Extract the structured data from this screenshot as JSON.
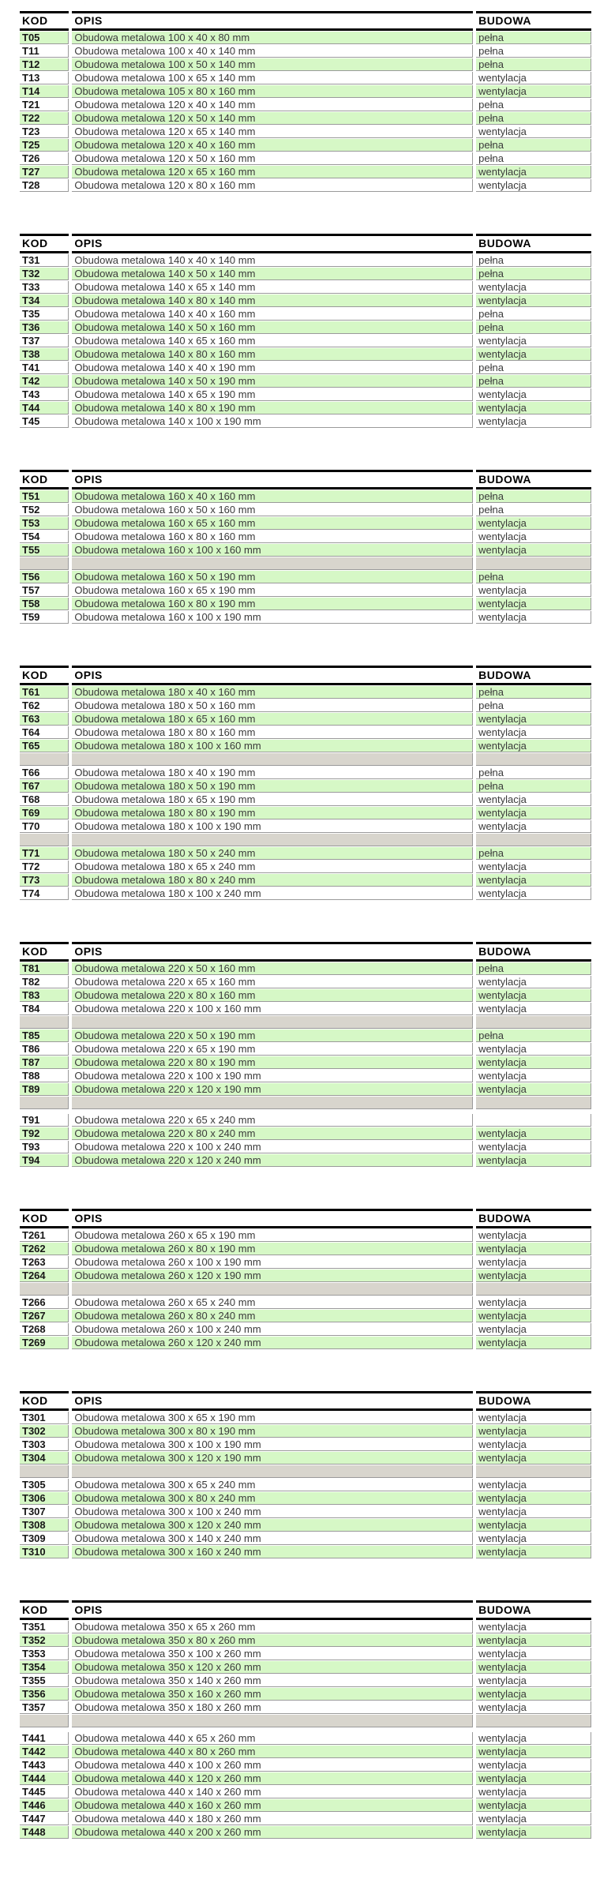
{
  "colors": {
    "row_green": "#d6f8c6",
    "row_gray": "#d8d5cd",
    "border_line": "#9a9a9a",
    "header_line": "#000000",
    "text": "#3a3a3a"
  },
  "columns": {
    "kod": "KOD",
    "opis": "OPIS",
    "budowa": "BUDOWA"
  },
  "tables": [
    {
      "rows": [
        {
          "shade": "green",
          "kod": "T05",
          "opis": "Obudowa metalowa 100 x 40 x 80 mm",
          "budowa": "pełna"
        },
        {
          "shade": "white",
          "kod": "T11",
          "opis": "Obudowa metalowa 100 x 40 x 140 mm",
          "budowa": "pełna"
        },
        {
          "shade": "green",
          "kod": "T12",
          "opis": "Obudowa metalowa 100 x 50 x 140 mm",
          "budowa": "pełna"
        },
        {
          "shade": "white",
          "kod": "T13",
          "opis": "Obudowa metalowa 100 x 65 x 140 mm",
          "budowa": "wentylacja"
        },
        {
          "shade": "green",
          "kod": "T14",
          "opis": "Obudowa metalowa 105 x 80 x 160 mm",
          "budowa": "wentylacja"
        },
        {
          "shade": "white",
          "kod": "T21",
          "opis": "Obudowa metalowa 120 x 40 x 140 mm",
          "budowa": "pełna"
        },
        {
          "shade": "green",
          "kod": "T22",
          "opis": "Obudowa metalowa 120 x 50 x 140 mm",
          "budowa": "pełna"
        },
        {
          "shade": "white",
          "kod": "T23",
          "opis": "Obudowa metalowa 120 x 65 x 140 mm",
          "budowa": "wentylacja"
        },
        {
          "shade": "green",
          "kod": "T25",
          "opis": "Obudowa metalowa 120 x 40 x 160 mm",
          "budowa": "pełna"
        },
        {
          "shade": "white",
          "kod": "T26",
          "opis": "Obudowa metalowa 120 x 50 x 160 mm",
          "budowa": "pełna"
        },
        {
          "shade": "green",
          "kod": "T27",
          "opis": "Obudowa metalowa 120 x 65 x 160 mm",
          "budowa": "wentylacja"
        },
        {
          "shade": "white",
          "kod": "T28",
          "opis": "Obudowa metalowa 120 x 80 x 160 mm",
          "budowa": "wentylacja"
        }
      ]
    },
    {
      "rows": [
        {
          "shade": "white",
          "kod": "T31",
          "opis": "Obudowa metalowa 140 x 40 x 140 mm",
          "budowa": "pełna"
        },
        {
          "shade": "green",
          "kod": "T32",
          "opis": "Obudowa metalowa 140 x 50 x 140 mm",
          "budowa": "pełna"
        },
        {
          "shade": "white",
          "kod": "T33",
          "opis": "Obudowa metalowa 140 x 65 x 140 mm",
          "budowa": "wentylacja"
        },
        {
          "shade": "green",
          "kod": "T34",
          "opis": "Obudowa metalowa 140 x 80 x 140 mm",
          "budowa": "wentylacja"
        },
        {
          "shade": "white",
          "kod": "T35",
          "opis": "Obudowa metalowa 140 x 40 x 160 mm",
          "budowa": "pełna"
        },
        {
          "shade": "green",
          "kod": "T36",
          "opis": "Obudowa metalowa 140 x 50 x 160 mm",
          "budowa": "pełna"
        },
        {
          "shade": "white",
          "kod": "T37",
          "opis": "Obudowa metalowa 140 x 65 x 160 mm",
          "budowa": "wentylacja"
        },
        {
          "shade": "green",
          "kod": "T38",
          "opis": "Obudowa metalowa 140 x 80 x 160 mm",
          "budowa": "wentylacja"
        },
        {
          "shade": "white",
          "kod": "T41",
          "opis": "Obudowa metalowa 140 x 40 x 190 mm",
          "budowa": "pełna"
        },
        {
          "shade": "green",
          "kod": "T42",
          "opis": "Obudowa metalowa 140 x 50 x 190 mm",
          "budowa": "pełna"
        },
        {
          "shade": "white",
          "kod": "T43",
          "opis": "Obudowa metalowa 140 x 65 x 190 mm",
          "budowa": "wentylacja"
        },
        {
          "shade": "green",
          "kod": "T44",
          "opis": "Obudowa metalowa 140 x 80 x 190 mm",
          "budowa": "wentylacja"
        },
        {
          "shade": "white",
          "kod": "T45",
          "opis": "Obudowa metalowa 140 x 100 x 190 mm",
          "budowa": "wentylacja"
        }
      ]
    },
    {
      "rows": [
        {
          "shade": "green",
          "kod": "T51",
          "opis": "Obudowa metalowa 160 x 40 x 160 mm",
          "budowa": "pełna"
        },
        {
          "shade": "white",
          "kod": "T52",
          "opis": "Obudowa metalowa 160 x 50 x 160 mm",
          "budowa": "pełna"
        },
        {
          "shade": "green",
          "kod": "T53",
          "opis": "Obudowa metalowa 160 x 65 x 160 mm",
          "budowa": "wentylacja"
        },
        {
          "shade": "white",
          "kod": "T54",
          "opis": "Obudowa metalowa 160 x 80 x 160 mm",
          "budowa": "wentylacja"
        },
        {
          "shade": "green",
          "kod": "T55",
          "opis": "Obudowa metalowa 160 x 100 x 160 mm",
          "budowa": "wentylacja"
        },
        {
          "type": "sep"
        },
        {
          "shade": "green",
          "kod": "T56",
          "opis": "Obudowa metalowa 160 x 50 x 190 mm",
          "budowa": "pełna"
        },
        {
          "shade": "white",
          "kod": "T57",
          "opis": "Obudowa metalowa 160 x 65 x 190 mm",
          "budowa": "wentylacja"
        },
        {
          "shade": "green",
          "kod": "T58",
          "opis": "Obudowa metalowa 160 x 80 x 190 mm",
          "budowa": "wentylacja"
        },
        {
          "shade": "white",
          "kod": "T59",
          "opis": "Obudowa metalowa 160 x 100 x 190 mm",
          "budowa": "wentylacja"
        }
      ]
    },
    {
      "rows": [
        {
          "shade": "green",
          "kod": "T61",
          "opis": "Obudowa metalowa 180 x 40 x 160 mm",
          "budowa": "pełna"
        },
        {
          "shade": "white",
          "kod": "T62",
          "opis": "Obudowa metalowa 180 x 50 x 160 mm",
          "budowa": "pełna"
        },
        {
          "shade": "green",
          "kod": "T63",
          "opis": "Obudowa metalowa 180 x 65 x 160 mm",
          "budowa": "wentylacja"
        },
        {
          "shade": "white",
          "kod": "T64",
          "opis": "Obudowa metalowa 180 x 80 x 160 mm",
          "budowa": "wentylacja"
        },
        {
          "shade": "green",
          "kod": "T65",
          "opis": "Obudowa metalowa 180 x 100 x 160 mm",
          "budowa": "wentylacja"
        },
        {
          "type": "sep"
        },
        {
          "shade": "white",
          "kod": "T66",
          "opis": "Obudowa metalowa 180 x 40 x 190 mm",
          "budowa": "pełna"
        },
        {
          "shade": "green",
          "kod": "T67",
          "opis": "Obudowa metalowa 180 x 50 x 190 mm",
          "budowa": "pełna"
        },
        {
          "shade": "white",
          "kod": "T68",
          "opis": "Obudowa metalowa 180 x 65 x 190 mm",
          "budowa": "wentylacja"
        },
        {
          "shade": "green",
          "kod": "T69",
          "opis": "Obudowa metalowa 180 x 80 x 190 mm",
          "budowa": "wentylacja"
        },
        {
          "shade": "white",
          "kod": "T70",
          "opis": "Obudowa metalowa 180 x 100 x 190 mm",
          "budowa": "wentylacja"
        },
        {
          "type": "sep"
        },
        {
          "shade": "green",
          "kod": "T71",
          "opis": "Obudowa metalowa 180 x 50 x 240 mm",
          "budowa": "pełna"
        },
        {
          "shade": "white",
          "kod": "T72",
          "opis": "Obudowa metalowa 180 x 65 x 240 mm",
          "budowa": "wentylacja"
        },
        {
          "shade": "green",
          "kod": "T73",
          "opis": "Obudowa metalowa 180 x 80 x 240 mm",
          "budowa": "wentylacja"
        },
        {
          "shade": "white",
          "kod": "T74",
          "opis": "Obudowa metalowa 180 x 100 x 240 mm",
          "budowa": "wentylacja"
        }
      ]
    },
    {
      "rows": [
        {
          "shade": "green",
          "kod": "T81",
          "opis": "Obudowa metalowa 220 x 50 x 160 mm",
          "budowa": "pełna"
        },
        {
          "shade": "white",
          "kod": "T82",
          "opis": "Obudowa metalowa 220 x 65 x 160 mm",
          "budowa": "wentylacja"
        },
        {
          "shade": "green",
          "kod": "T83",
          "opis": "Obudowa metalowa 220 x 80 x 160 mm",
          "budowa": "wentylacja"
        },
        {
          "shade": "white",
          "kod": "T84",
          "opis": "Obudowa metalowa 220 x 100 x 160 mm",
          "budowa": "wentylacja"
        },
        {
          "type": "sep"
        },
        {
          "shade": "green",
          "kod": "T85",
          "opis": "Obudowa metalowa 220 x 50 x 190 mm",
          "budowa": "pełna"
        },
        {
          "shade": "white",
          "kod": "T86",
          "opis": "Obudowa metalowa 220 x 65 x 190 mm",
          "budowa": "wentylacja"
        },
        {
          "shade": "green",
          "kod": "T87",
          "opis": "Obudowa metalowa 220 x 80 x 190 mm",
          "budowa": "wentylacja"
        },
        {
          "shade": "white",
          "kod": "T88",
          "opis": "Obudowa metalowa 220 x 100 x 190 mm",
          "budowa": "wentylacja"
        },
        {
          "shade": "green",
          "kod": "T89",
          "opis": "Obudowa metalowa 220 x 120 x 190 mm",
          "budowa": "wentylacja"
        },
        {
          "type": "sep"
        },
        {
          "type": "spacer"
        },
        {
          "shade": "white",
          "kod": "T91",
          "opis": "Obudowa metalowa 220 x 65 x 240 mm",
          "budowa": ""
        },
        {
          "shade": "green",
          "kod": "T92",
          "opis": "Obudowa metalowa 220 x 80 x 240 mm",
          "budowa": "wentylacja"
        },
        {
          "shade": "white",
          "kod": "T93",
          "opis": "Obudowa metalowa 220 x 100 x 240 mm",
          "budowa": "wentylacja"
        },
        {
          "shade": "green",
          "kod": "T94",
          "opis": "Obudowa metalowa 220 x 120 x 240 mm",
          "budowa": "wentylacja"
        }
      ]
    },
    {
      "rows": [
        {
          "shade": "white",
          "kod": "T261",
          "opis": "Obudowa metalowa 260 x 65 x 190 mm",
          "budowa": "wentylacja"
        },
        {
          "shade": "green",
          "kod": "T262",
          "opis": "Obudowa metalowa 260 x 80 x 190 mm",
          "budowa": "wentylacja"
        },
        {
          "shade": "white",
          "kod": "T263",
          "opis": "Obudowa metalowa 260 x 100 x 190 mm",
          "budowa": "wentylacja"
        },
        {
          "shade": "green",
          "kod": "T264",
          "opis": "Obudowa metalowa 260 x 120 x 190 mm",
          "budowa": "wentylacja"
        },
        {
          "type": "sep"
        },
        {
          "shade": "white",
          "kod": "T266",
          "opis": "Obudowa metalowa 260 x 65 x 240 mm",
          "budowa": "wentylacja"
        },
        {
          "shade": "green",
          "kod": "T267",
          "opis": "Obudowa metalowa 260 x 80 x 240 mm",
          "budowa": "wentylacja"
        },
        {
          "shade": "white",
          "kod": "T268",
          "opis": "Obudowa metalowa 260 x 100 x 240 mm",
          "budowa": "wentylacja"
        },
        {
          "shade": "green",
          "kod": "T269",
          "opis": "Obudowa metalowa 260 x 120 x 240 mm",
          "budowa": "wentylacja"
        }
      ]
    },
    {
      "rows": [
        {
          "shade": "white",
          "kod": "T301",
          "opis": "Obudowa metalowa 300 x 65 x 190 mm",
          "budowa": "wentylacja"
        },
        {
          "shade": "green",
          "kod": "T302",
          "opis": "Obudowa metalowa 300 x 80 x 190 mm",
          "budowa": "wentylacja"
        },
        {
          "shade": "white",
          "kod": "T303",
          "opis": "Obudowa metalowa 300 x 100 x 190 mm",
          "budowa": "wentylacja"
        },
        {
          "shade": "green",
          "kod": "T304",
          "opis": "Obudowa metalowa 300 x 120 x 190 mm",
          "budowa": "wentylacja"
        },
        {
          "type": "sep"
        },
        {
          "shade": "white",
          "kod": "T305",
          "opis": "Obudowa metalowa 300 x 65 x 240 mm",
          "budowa": "wentylacja"
        },
        {
          "shade": "green",
          "kod": "T306",
          "opis": "Obudowa metalowa 300 x 80 x 240 mm",
          "budowa": "wentylacja"
        },
        {
          "shade": "white",
          "kod": "T307",
          "opis": "Obudowa metalowa 300 x 100 x 240 mm",
          "budowa": "wentylacja"
        },
        {
          "shade": "green",
          "kod": "T308",
          "opis": "Obudowa metalowa 300 x 120 x 240 mm",
          "budowa": "wentylacja"
        },
        {
          "shade": "white",
          "kod": "T309",
          "opis": "Obudowa metalowa 300 x 140 x 240 mm",
          "budowa": "wentylacja"
        },
        {
          "shade": "green",
          "kod": "T310",
          "opis": "Obudowa metalowa 300 x 160 x 240 mm",
          "budowa": "wentylacja"
        }
      ]
    },
    {
      "rows": [
        {
          "shade": "white",
          "kod": "T351",
          "opis": "Obudowa metalowa 350 x 65 x 260 mm",
          "budowa": "wentylacja"
        },
        {
          "shade": "green",
          "kod": "T352",
          "opis": "Obudowa metalowa 350 x 80 x 260 mm",
          "budowa": "wentylacja"
        },
        {
          "shade": "white",
          "kod": "T353",
          "opis": "Obudowa metalowa 350 x 100 x 260 mm",
          "budowa": "wentylacja"
        },
        {
          "shade": "green",
          "kod": "T354",
          "opis": "Obudowa metalowa 350 x 120 x 260 mm",
          "budowa": "wentylacja"
        },
        {
          "shade": "white",
          "kod": "T355",
          "opis": "Obudowa metalowa 350 x 140 x 260 mm",
          "budowa": "wentylacja"
        },
        {
          "shade": "green",
          "kod": "T356",
          "opis": "Obudowa metalowa 350 x 160 x 260 mm",
          "budowa": "wentylacja"
        },
        {
          "shade": "white",
          "kod": "T357",
          "opis": "Obudowa metalowa 350 x 180 x 260 mm",
          "budowa": "wentylacja"
        },
        {
          "type": "sep"
        },
        {
          "type": "spacer"
        },
        {
          "shade": "white",
          "kod": "T441",
          "opis": "Obudowa metalowa 440 x 65 x 260 mm",
          "budowa": "wentylacja"
        },
        {
          "shade": "green",
          "kod": "T442",
          "opis": "Obudowa metalowa 440 x 80 x 260 mm",
          "budowa": "wentylacja"
        },
        {
          "shade": "white",
          "kod": "T443",
          "opis": "Obudowa metalowa 440 x 100 x 260 mm",
          "budowa": "wentylacja"
        },
        {
          "shade": "green",
          "kod": "T444",
          "opis": "Obudowa metalowa 440 x 120 x 260 mm",
          "budowa": "wentylacja"
        },
        {
          "shade": "white",
          "kod": "T445",
          "opis": "Obudowa metalowa 440 x 140 x 260 mm",
          "budowa": "wentylacja"
        },
        {
          "shade": "green",
          "kod": "T446",
          "opis": "Obudowa metalowa 440 x 160 x 260 mm",
          "budowa": "wentylacja"
        },
        {
          "shade": "white",
          "kod": "T447",
          "opis": "Obudowa metalowa 440 x 180 x 260 mm",
          "budowa": "wentylacja"
        },
        {
          "shade": "green",
          "kod": "T448",
          "opis": "Obudowa metalowa 440 x 200 x 260 mm",
          "budowa": "wentylacja"
        }
      ]
    }
  ]
}
